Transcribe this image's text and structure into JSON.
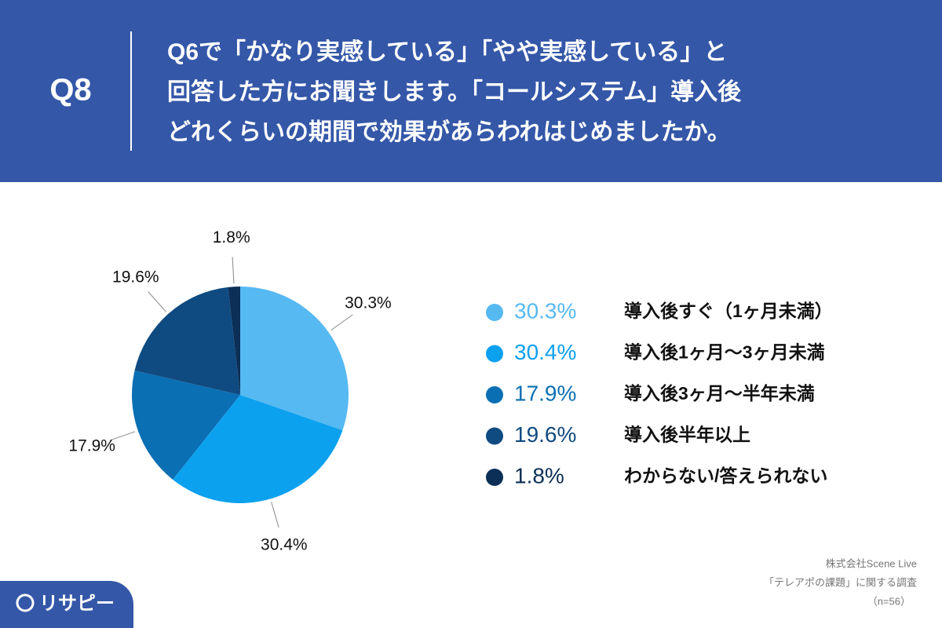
{
  "header": {
    "label": "Q8",
    "question": [
      "Q6で「かなり実感している」「やや実感している」と",
      "回答した方にお聞きします。「コールシステム」導入後",
      "どれくらいの期間で効果があらわれはじめましたか。"
    ]
  },
  "chart_data": {
    "type": "pie",
    "categories": [
      "導入後すぐ（1ヶ月未満）",
      "導入後1ヶ月〜3ヶ月未満",
      "導入後3ヶ月〜半年未満",
      "導入後半年以上",
      "わからない/答えられない"
    ],
    "values": [
      30.3,
      30.4,
      17.9,
      19.6,
      1.8
    ],
    "value_labels": [
      "30.3%",
      "30.4%",
      "17.9%",
      "19.6%",
      "1.8%"
    ],
    "colors": [
      "#56b9f2",
      "#0ca1ef",
      "#0b6fb3",
      "#0f4a80",
      "#0b2f57"
    ]
  },
  "footer": {
    "notes": [
      "株式会社Scene Live",
      "「テレアポの課題」に関する調査",
      "（n=56）"
    ],
    "logo": "リサピー"
  }
}
